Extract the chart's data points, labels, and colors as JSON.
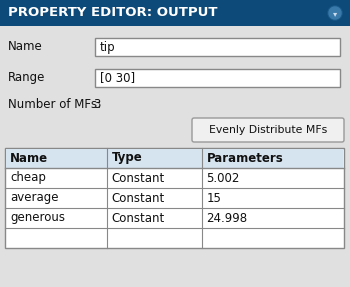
{
  "title": "PROPERTY EDITOR: OUTPUT",
  "title_bg": "#0d4a7a",
  "title_fg": "#ffffff",
  "body_bg": "#e0e0e0",
  "field_bg": "#ffffff",
  "field_border": "#888888",
  "label_color": "#111111",
  "name_value": "tip",
  "range_value": "[0 30]",
  "num_mfs_label": "Number of MFs:",
  "num_mfs_value": "3",
  "button_text": "Evenly Distribute MFs",
  "table_headers": [
    "Name",
    "Type",
    "Parameters"
  ],
  "table_rows": [
    [
      "cheap",
      "Constant",
      "5.002"
    ],
    [
      "average",
      "Constant",
      "15"
    ],
    [
      "generous",
      "Constant",
      "24.998"
    ]
  ],
  "table_header_bg": "#d6e4f0",
  "table_border": "#888888",
  "button_bg": "#f0f0f0",
  "button_border": "#999999",
  "icon_bg": "#6e8fad"
}
